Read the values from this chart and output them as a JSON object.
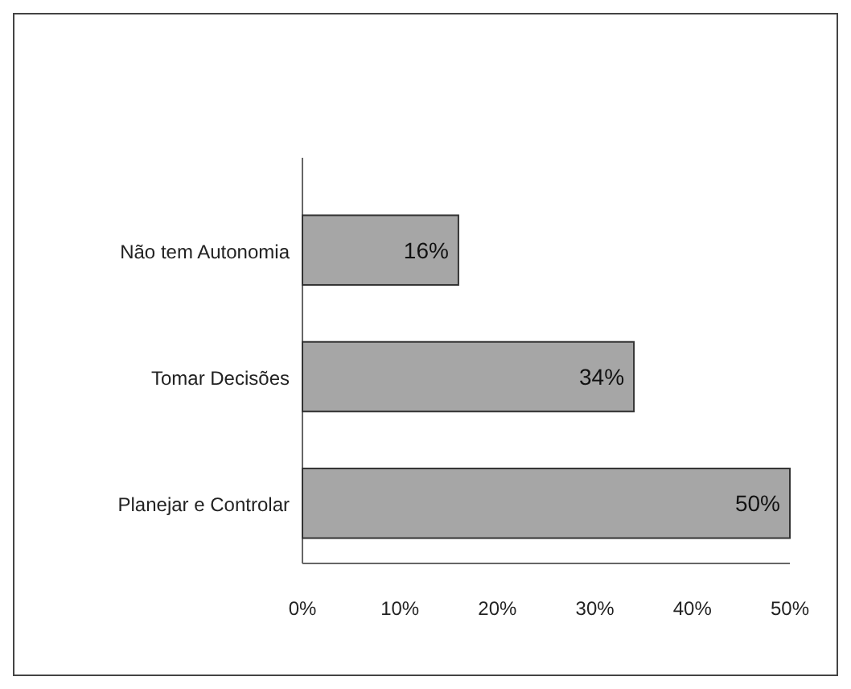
{
  "chart_data": {
    "type": "bar",
    "orientation": "horizontal",
    "categories": [
      "Não tem Autonomia",
      "Tomar Decisões",
      "Planejar e Controlar"
    ],
    "values": [
      16,
      34,
      50
    ],
    "color": "#a6a6a6",
    "value_labels": [
      "16%",
      "34%",
      "50%"
    ],
    "xlim": [
      0,
      50
    ],
    "xticks": [
      {
        "value": 0,
        "label": "0%"
      },
      {
        "value": 10,
        "label": "10%"
      },
      {
        "value": 20,
        "label": "20%"
      },
      {
        "value": 30,
        "label": "30%"
      },
      {
        "value": 40,
        "label": "40%"
      },
      {
        "value": 50,
        "label": "50%"
      }
    ],
    "grid": false
  }
}
